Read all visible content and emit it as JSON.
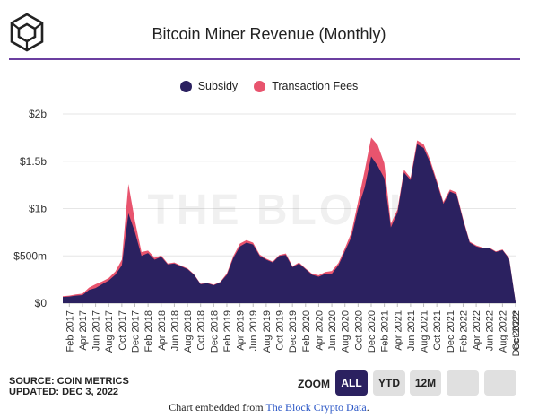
{
  "title": "Bitcoin Miner Revenue (Monthly)",
  "watermark": "THE BLOCK",
  "colors": {
    "subsidy": "#2b2160",
    "fees": "#e8546e",
    "accent": "#6b3fa0",
    "grid": "#e6e6e6",
    "button_active": "#2b2160",
    "button_inactive": "#e0e0e0"
  },
  "chart_data": {
    "type": "area",
    "stacked": true,
    "title": "Bitcoin Miner Revenue (Monthly)",
    "x_start": "2017-01",
    "x_end": "2022-12",
    "x_tick_labels": [
      "Feb 2017",
      "Apr 2017",
      "Jun 2017",
      "Aug 2017",
      "Oct 2017",
      "Dec 2017",
      "Feb 2018",
      "Apr 2018",
      "Jun 2018",
      "Aug 2018",
      "Oct 2018",
      "Dec 2018",
      "Feb 2019",
      "Apr 2019",
      "Jun 2019",
      "Aug 2019",
      "Oct 2019",
      "Dec 2019",
      "Feb 2020",
      "Apr 2020",
      "Jun 2020",
      "Aug 2020",
      "Oct 2020",
      "Dec 2020",
      "Feb 2021",
      "Apr 2021",
      "Jun 2021",
      "Aug 2021",
      "Oct 2021",
      "Dec 2021",
      "Feb 2022",
      "Apr 2022",
      "Jun 2022",
      "Aug 2022",
      "Oct 2022",
      "Dec 2022*"
    ],
    "y_ticks": [
      "$0",
      "$500m",
      "$1b",
      "$1.5b",
      "$2b"
    ],
    "y_tick_values_m": [
      0,
      500,
      1000,
      1500,
      2000
    ],
    "ylim_m": [
      0,
      2000
    ],
    "unit": "USD millions",
    "series": [
      {
        "name": "Subsidy",
        "values": [
          65,
          70,
          80,
          85,
          140,
          160,
          200,
          240,
          300,
          400,
          950,
          750,
          500,
          530,
          460,
          490,
          410,
          420,
          390,
          360,
          300,
          200,
          210,
          190,
          220,
          300,
          480,
          600,
          640,
          620,
          500,
          460,
          430,
          500,
          510,
          380,
          420,
          360,
          300,
          280,
          310,
          310,
          400,
          550,
          700,
          1000,
          1220,
          1550,
          1450,
          1320,
          800,
          960,
          1380,
          1300,
          1680,
          1640,
          1480,
          1270,
          1050,
          1180,
          1150,
          880,
          640,
          600,
          580,
          580,
          540,
          560,
          470,
          10
        ],
        "note": "monthly subsidy, Jan 2017 – Dec 2022"
      },
      {
        "name": "Transaction Fees",
        "values": [
          8,
          10,
          12,
          15,
          25,
          40,
          30,
          25,
          35,
          60,
          310,
          120,
          40,
          25,
          20,
          15,
          10,
          10,
          8,
          8,
          5,
          5,
          5,
          5,
          5,
          15,
          20,
          30,
          25,
          20,
          15,
          10,
          10,
          10,
          15,
          10,
          10,
          8,
          10,
          15,
          20,
          30,
          25,
          30,
          50,
          70,
          180,
          200,
          220,
          160,
          40,
          30,
          30,
          25,
          40,
          40,
          30,
          25,
          20,
          20,
          20,
          15,
          10,
          10,
          8,
          8,
          8,
          8,
          8,
          2
        ],
        "note": "monthly fees stacked on subsidy"
      }
    ],
    "legend_position": "top-center"
  },
  "legend": [
    {
      "label": "Subsidy",
      "color": "#2b2160"
    },
    {
      "label": "Transaction Fees",
      "color": "#e8546e"
    }
  ],
  "footer": {
    "source": "SOURCE: COIN METRICS",
    "updated": "UPDATED: DEC 3, 2022"
  },
  "zoom": {
    "label": "ZOOM",
    "buttons": [
      "ALL",
      "YTD",
      "12M"
    ],
    "active": "ALL"
  },
  "embed_text": {
    "prefix": "Chart embedded from ",
    "link": "The Block Crypto Data",
    "suffix": "."
  }
}
